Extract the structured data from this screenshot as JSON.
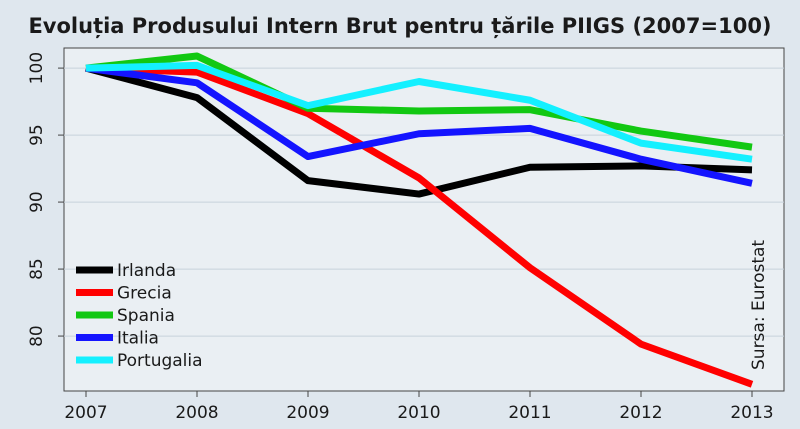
{
  "chart_data": {
    "type": "line",
    "title": "Evoluția Produsului Intern Brut pentru țările PIIGS (2007=100)",
    "source_note": "Sursa: Eurostat",
    "categories": [
      "2007",
      "2008",
      "2009",
      "2010",
      "2011",
      "2012",
      "2013"
    ],
    "y_ticks": [
      80,
      85,
      90,
      95,
      100
    ],
    "ylim": [
      75.9,
      101.5
    ],
    "grid": true,
    "legend_position": "bottom-left",
    "series": [
      {
        "name": "Irlanda",
        "color": "#000000",
        "values": [
          100,
          97.8,
          91.6,
          90.6,
          92.6,
          92.7,
          92.4
        ]
      },
      {
        "name": "Grecia",
        "color": "#ff0000",
        "values": [
          100,
          99.7,
          96.6,
          91.8,
          85.1,
          79.4,
          76.4
        ]
      },
      {
        "name": "Spania",
        "color": "#12c812",
        "values": [
          100,
          100.9,
          97.0,
          96.8,
          96.9,
          95.3,
          94.1
        ]
      },
      {
        "name": "Italia",
        "color": "#1414ff",
        "values": [
          100,
          98.9,
          93.4,
          95.1,
          95.5,
          93.2,
          91.4
        ]
      },
      {
        "name": "Portugalia",
        "color": "#14f0ff",
        "values": [
          100,
          100.2,
          97.2,
          99.0,
          97.6,
          94.4,
          93.2
        ]
      }
    ]
  }
}
